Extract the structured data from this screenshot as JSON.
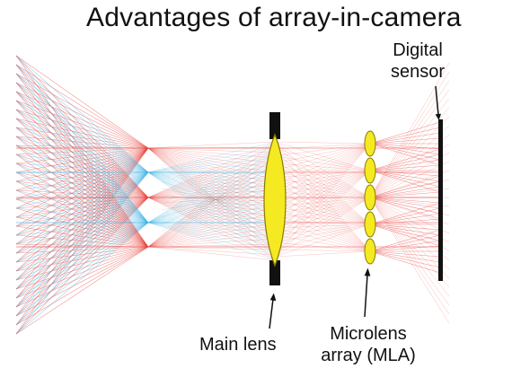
{
  "title": "Advantages of array-in-camera",
  "labels": {
    "digital_sensor": [
      "Digital",
      "sensor"
    ],
    "main_lens": "Main lens",
    "microlens_array": [
      "Microlens",
      "array (MLA)"
    ]
  },
  "colors": {
    "red_rays": "#e8413c",
    "blue_rays": "#3fb4e6",
    "gray_rays": "#9a9a9a",
    "lens_fill": "#f5ea22",
    "lens_stroke": "#8a7a00",
    "aperture": "#111111",
    "sensor": "#111111",
    "text": "#111111"
  },
  "components": {
    "main_lens": "main-lens",
    "aperture_stops": "aperture-stops",
    "microlens_count": 5,
    "sensor": "digital-sensor"
  }
}
